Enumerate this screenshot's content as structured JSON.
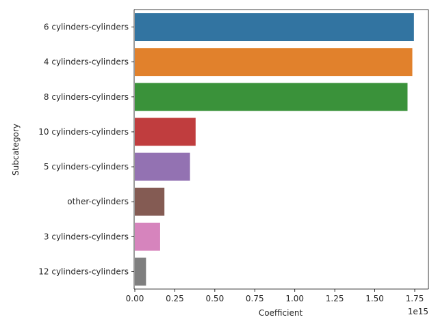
{
  "chart_data": {
    "type": "bar",
    "orientation": "horizontal",
    "categories": [
      "6 cylinders-cylinders",
      "4 cylinders-cylinders",
      "8 cylinders-cylinders",
      "10 cylinders-cylinders",
      "5 cylinders-cylinders",
      "other-cylinders",
      "3 cylinders-cylinders",
      "12 cylinders-cylinders"
    ],
    "values": [
      1.745,
      1.735,
      1.705,
      0.38,
      0.345,
      0.185,
      0.158,
      0.07
    ],
    "colors": [
      "#3274a1",
      "#e1812c",
      "#3a923a",
      "#c03d3e",
      "#9372b2",
      "#845b53",
      "#d684bd",
      "#7f7f7f"
    ],
    "xlabel": "Coefficient",
    "ylabel": "Subcategory",
    "x_scale_note": "1e15",
    "xlim": [
      0,
      1.8
    ],
    "xticks": [
      0.0,
      0.25,
      0.5,
      0.75,
      1.0,
      1.25,
      1.5,
      1.75
    ],
    "xtick_labels": [
      "0.00",
      "0.25",
      "0.50",
      "0.75",
      "1.00",
      "1.25",
      "1.50",
      "1.75"
    ],
    "grid": false,
    "legend": "none"
  }
}
